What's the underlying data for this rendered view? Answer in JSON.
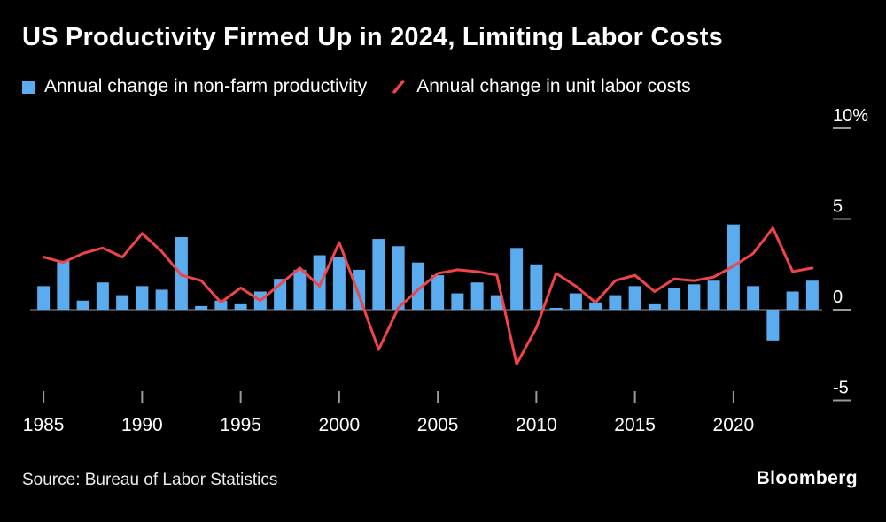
{
  "title": "US Productivity Firmed Up in 2024, Limiting Labor Costs",
  "legend": [
    {
      "label": "Annual change in non-farm productivity",
      "marker": "square",
      "color": "#5aacee"
    },
    {
      "label": "Annual change in unit labor costs",
      "marker": "slash",
      "color": "#f0434a"
    }
  ],
  "source": "Source: Bureau of Labor Statistics",
  "brand": "Bloomberg",
  "colors": {
    "background": "#000000",
    "bar": "#5aacee",
    "line": "#f0434a",
    "text": "#ffffff",
    "tick": "#9a9a9a",
    "zero_line": "#777777"
  },
  "chart_data": {
    "type": "bar+line",
    "title": "US Productivity Firmed Up in 2024, Limiting Labor Costs",
    "x": [
      1985,
      1986,
      1987,
      1988,
      1989,
      1990,
      1991,
      1992,
      1993,
      1994,
      1995,
      1996,
      1997,
      1998,
      1999,
      2000,
      2001,
      2002,
      2003,
      2004,
      2005,
      2006,
      2007,
      2008,
      2009,
      2010,
      2011,
      2012,
      2013,
      2014,
      2015,
      2016,
      2017,
      2018,
      2019,
      2020,
      2021,
      2022,
      2023,
      2024
    ],
    "series": [
      {
        "name": "Annual change in non-farm productivity",
        "type": "bar",
        "color": "#5aacee",
        "values": [
          1.3,
          2.7,
          0.5,
          1.5,
          0.8,
          1.3,
          1.1,
          4.0,
          0.2,
          0.5,
          0.3,
          1.0,
          1.7,
          2.2,
          3.0,
          2.9,
          2.2,
          3.9,
          3.5,
          2.6,
          1.9,
          0.9,
          1.5,
          0.8,
          3.4,
          2.5,
          0.1,
          0.9,
          0.4,
          0.8,
          1.3,
          0.3,
          1.2,
          1.4,
          1.6,
          4.7,
          1.3,
          -1.7,
          1.0,
          1.6
        ]
      },
      {
        "name": "Annual change in unit labor costs",
        "type": "line",
        "color": "#f0434a",
        "values": [
          2.9,
          2.6,
          3.1,
          3.4,
          2.9,
          4.2,
          3.2,
          1.9,
          1.6,
          0.4,
          1.2,
          0.5,
          1.4,
          2.3,
          1.3,
          3.7,
          0.8,
          -2.2,
          0.1,
          1.1,
          2.0,
          2.2,
          2.1,
          1.9,
          -3.0,
          -1.0,
          2.0,
          1.3,
          0.4,
          1.6,
          1.9,
          1.0,
          1.7,
          1.6,
          1.8,
          2.4,
          3.1,
          4.5,
          2.1,
          2.3
        ]
      }
    ],
    "unit": "%",
    "ylim": [
      -6.5,
      10.5
    ],
    "yticks": [
      {
        "value": 10,
        "label": "10%"
      },
      {
        "value": 5,
        "label": "5"
      },
      {
        "value": 0,
        "label": "0"
      },
      {
        "value": -5,
        "label": "-5"
      }
    ],
    "xticks": [
      1985,
      1990,
      1995,
      2000,
      2005,
      2010,
      2015,
      2020
    ],
    "grid": false,
    "legend_position": "top"
  }
}
